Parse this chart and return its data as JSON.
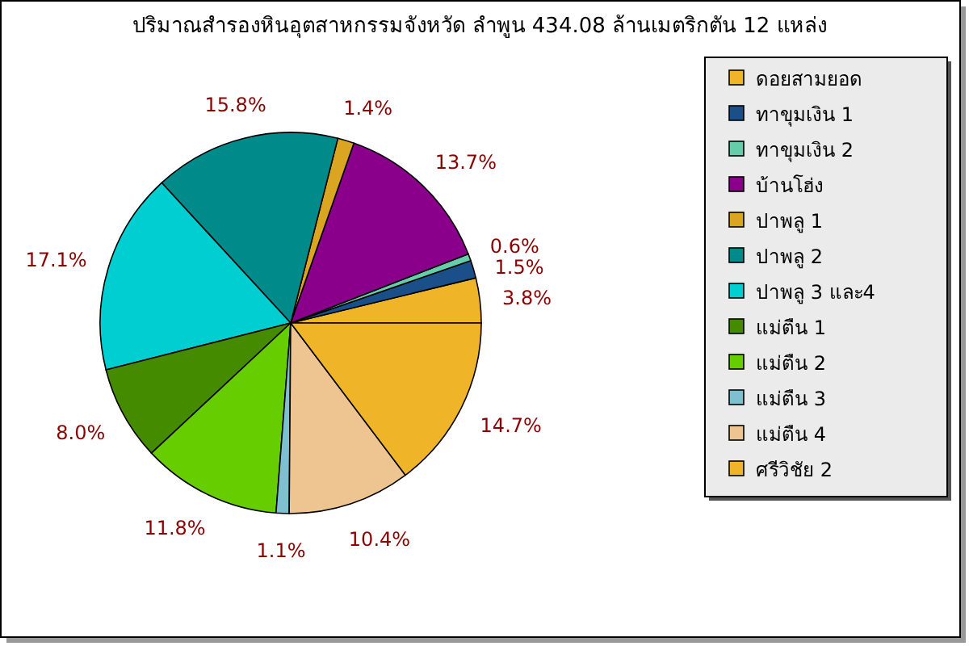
{
  "chart_data": {
    "type": "pie",
    "title": "ปริมาณสำรองหินอุตสาหกรรมจังหวัด ลำพูน 434.08 ล้านเมตริกตัน 12 แหล่ง",
    "categories": [
      "ดอยสามยอด",
      "ทาขุมเงิน 1",
      "ทาขุมเงิน 2",
      "บ้านโฮ่ง",
      "ปาพลู 1",
      "ปาพลู 2",
      "ปาพลู 3 และ4",
      "แม่ตืน 1",
      "แม่ตืน 2",
      "แม่ตืน 3",
      "แม่ตืน 4",
      "ศรีวิชัย 2"
    ],
    "values": [
      3.8,
      1.5,
      0.6,
      13.7,
      1.4,
      15.8,
      17.1,
      8.0,
      11.8,
      1.1,
      10.4,
      14.7
    ],
    "colors": [
      "#f0b428",
      "#1a4f8a",
      "#66cdaa",
      "#8b008b",
      "#daa520",
      "#008b8b",
      "#00ced1",
      "#458b00",
      "#66cd00",
      "#7ec0d0",
      "#eec591",
      "#f0b428"
    ],
    "value_labels": [
      "3.8%",
      "1.5%",
      "0.6%",
      "13.7%",
      "1.4%",
      "15.8%",
      "17.1%",
      "8.0%",
      "11.8%",
      "1.1%",
      "10.4%",
      "14.7%"
    ],
    "legend": "right"
  }
}
